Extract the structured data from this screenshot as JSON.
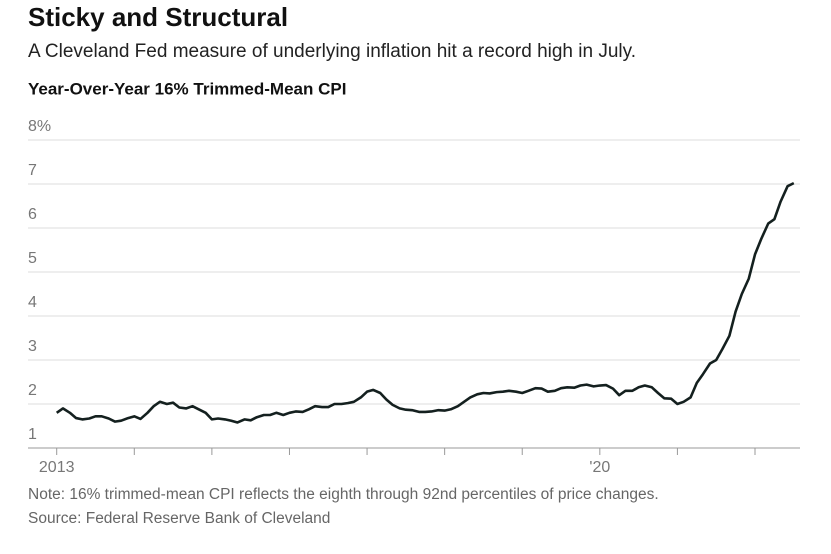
{
  "chart_data": {
    "type": "line",
    "title": "Sticky and Structural",
    "subtitle": "A Cleveland Fed measure of underlying inflation hit a record high in July.",
    "axis_title": "Year-Over-Year 16% Trimmed-Mean CPI",
    "note": "Note: 16% trimmed-mean CPI reflects the eighth through 92nd percentiles of price changes.",
    "source": "Source: Federal Reserve Bank of Cleveland",
    "color": "#14201f",
    "grid": true,
    "xlim": [
      2012.63,
      2022.58
    ],
    "ylim": [
      1,
      8
    ],
    "yticks": [
      1,
      2,
      3,
      4,
      5,
      6,
      7,
      {
        "value": 8,
        "label": "8%"
      }
    ],
    "xticks": [
      2013,
      {
        "value": 2014,
        "label": null
      },
      {
        "value": 2015,
        "label": null
      },
      {
        "value": 2016,
        "label": null
      },
      {
        "value": 2017,
        "label": null
      },
      {
        "value": 2018,
        "label": null
      },
      {
        "value": 2019,
        "label": null
      },
      {
        "value": 2020,
        "label": "'20"
      },
      {
        "value": 2021,
        "label": null
      },
      {
        "value": 2022,
        "label": null
      }
    ],
    "x": [
      2013,
      2013.08,
      2013.17,
      2013.25,
      2013.33,
      2013.42,
      2013.5,
      2013.58,
      2013.67,
      2013.75,
      2013.83,
      2013.92,
      2014,
      2014.08,
      2014.17,
      2014.25,
      2014.33,
      2014.42,
      2014.5,
      2014.58,
      2014.67,
      2014.75,
      2014.83,
      2014.92,
      2015,
      2015.08,
      2015.17,
      2015.25,
      2015.33,
      2015.42,
      2015.5,
      2015.58,
      2015.67,
      2015.75,
      2015.83,
      2015.92,
      2016,
      2016.08,
      2016.17,
      2016.25,
      2016.33,
      2016.42,
      2016.5,
      2016.58,
      2016.67,
      2016.75,
      2016.83,
      2016.92,
      2017,
      2017.08,
      2017.17,
      2017.25,
      2017.33,
      2017.42,
      2017.5,
      2017.58,
      2017.67,
      2017.75,
      2017.83,
      2017.92,
      2018,
      2018.08,
      2018.17,
      2018.25,
      2018.33,
      2018.42,
      2018.5,
      2018.58,
      2018.67,
      2018.75,
      2018.83,
      2018.92,
      2019,
      2019.08,
      2019.17,
      2019.25,
      2019.33,
      2019.42,
      2019.5,
      2019.58,
      2019.67,
      2019.75,
      2019.83,
      2019.92,
      2020,
      2020.08,
      2020.17,
      2020.25,
      2020.33,
      2020.42,
      2020.5,
      2020.58,
      2020.67,
      2020.75,
      2020.83,
      2020.92,
      2021,
      2021.08,
      2021.17,
      2021.25,
      2021.33,
      2021.42,
      2021.5,
      2021.58,
      2021.67,
      2021.75,
      2021.83,
      2021.92,
      2022,
      2022.08,
      2022.17,
      2022.25,
      2022.33,
      2022.42,
      2022.5
    ],
    "values": [
      1.8,
      1.9,
      1.8,
      1.68,
      1.65,
      1.67,
      1.72,
      1.72,
      1.67,
      1.6,
      1.62,
      1.68,
      1.72,
      1.66,
      1.8,
      1.95,
      2.05,
      2.0,
      2.03,
      1.92,
      1.9,
      1.95,
      1.88,
      1.8,
      1.65,
      1.67,
      1.65,
      1.62,
      1.58,
      1.65,
      1.63,
      1.7,
      1.75,
      1.75,
      1.8,
      1.75,
      1.8,
      1.83,
      1.82,
      1.88,
      1.95,
      1.93,
      1.93,
      2.0,
      2.0,
      2.02,
      2.05,
      2.15,
      2.28,
      2.32,
      2.25,
      2.1,
      1.98,
      1.9,
      1.87,
      1.86,
      1.82,
      1.82,
      1.83,
      1.86,
      1.85,
      1.88,
      1.95,
      2.05,
      2.15,
      2.22,
      2.25,
      2.24,
      2.27,
      2.28,
      2.3,
      2.28,
      2.25,
      2.3,
      2.36,
      2.35,
      2.28,
      2.3,
      2.36,
      2.38,
      2.37,
      2.42,
      2.44,
      2.4,
      2.42,
      2.43,
      2.35,
      2.2,
      2.3,
      2.3,
      2.38,
      2.42,
      2.38,
      2.25,
      2.13,
      2.12,
      2.0,
      2.05,
      2.15,
      2.48,
      2.68,
      2.92,
      3.0,
      3.25,
      3.55,
      4.1,
      4.5,
      4.85,
      5.4,
      5.75,
      6.1,
      6.2,
      6.6,
      6.95,
      7.02
    ]
  }
}
